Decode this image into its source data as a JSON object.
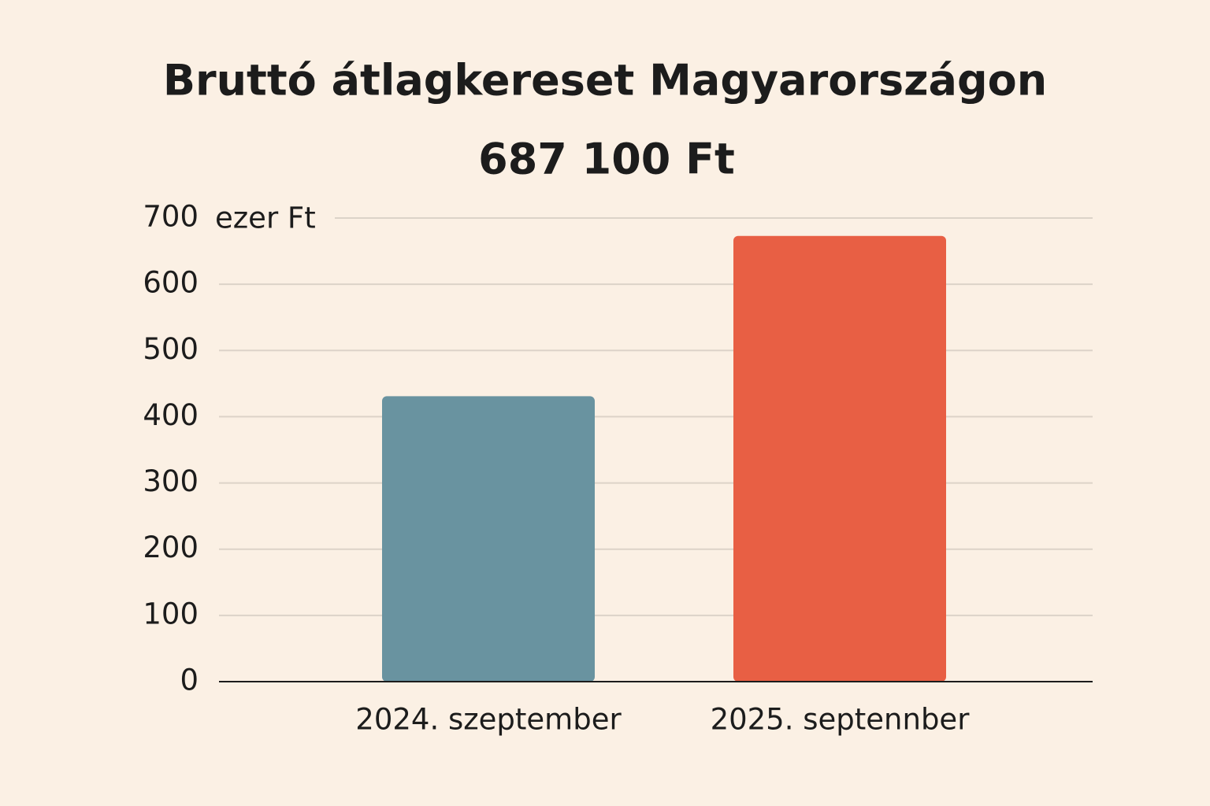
{
  "chart_data": {
    "type": "bar",
    "title": "Bruttó átlagkereset Magyarországon",
    "subtitle": "687 100 Ft",
    "y_label": "ezer Ft",
    "categories": [
      "2024. szeptember",
      "2025. septennber"
    ],
    "values": [
      431,
      673
    ],
    "colors": [
      "#6993a0",
      "#e85f44"
    ],
    "ylim": [
      0,
      700
    ],
    "yticks": [
      0,
      100,
      200,
      300,
      400,
      500,
      600,
      700
    ],
    "grid": true
  }
}
